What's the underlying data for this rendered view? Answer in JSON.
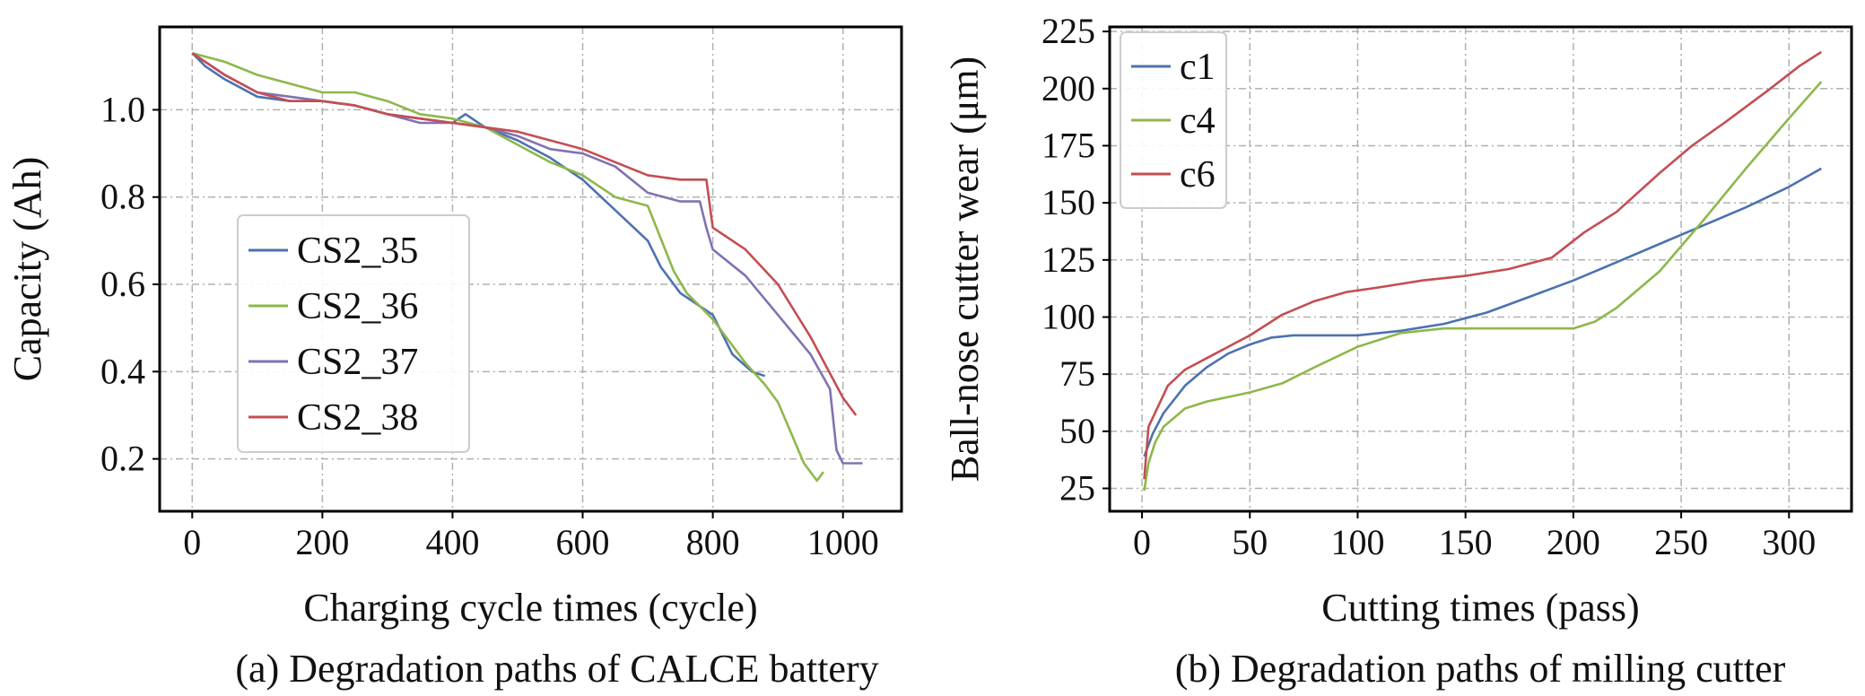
{
  "chart_data": [
    {
      "type": "line",
      "caption": "(a) Degradation paths of CALCE battery",
      "xlabel": "Charging cycle times (cycle)",
      "ylabel": "Capacity (Ah)",
      "xlim": [
        -50,
        1090
      ],
      "ylim": [
        0.08,
        1.19
      ],
      "xticks": [
        0,
        200,
        400,
        600,
        800,
        1000
      ],
      "yticks": [
        0.2,
        0.4,
        0.6,
        0.8,
        1.0
      ],
      "xtick_labels": [
        "0",
        "200",
        "400",
        "600",
        "800",
        "1000"
      ],
      "ytick_labels": [
        "0.2",
        "0.4",
        "0.6",
        "0.8",
        "1.0"
      ],
      "grid": true,
      "legend_position": "center-left",
      "series": [
        {
          "name": "CS2_35",
          "color": "#4C72B0",
          "x": [
            0,
            20,
            50,
            100,
            150,
            200,
            250,
            300,
            350,
            400,
            420,
            450,
            500,
            550,
            600,
            650,
            700,
            720,
            750,
            800,
            830,
            860,
            880
          ],
          "y": [
            1.13,
            1.1,
            1.07,
            1.03,
            1.02,
            1.02,
            1.01,
            0.99,
            0.98,
            0.97,
            0.99,
            0.96,
            0.93,
            0.89,
            0.84,
            0.77,
            0.7,
            0.64,
            0.58,
            0.53,
            0.44,
            0.4,
            0.39
          ]
        },
        {
          "name": "CS2_36",
          "color": "#8DB84A",
          "x": [
            0,
            50,
            100,
            150,
            200,
            250,
            300,
            350,
            400,
            450,
            500,
            550,
            600,
            650,
            700,
            740,
            760,
            800,
            850,
            880,
            900,
            920,
            940,
            960,
            970
          ],
          "y": [
            1.13,
            1.11,
            1.08,
            1.06,
            1.04,
            1.04,
            1.02,
            0.99,
            0.98,
            0.96,
            0.92,
            0.88,
            0.85,
            0.8,
            0.78,
            0.63,
            0.58,
            0.52,
            0.42,
            0.37,
            0.33,
            0.26,
            0.19,
            0.15,
            0.17
          ]
        },
        {
          "name": "CS2_37",
          "color": "#8172B2",
          "x": [
            0,
            50,
            100,
            150,
            200,
            250,
            300,
            350,
            400,
            450,
            500,
            550,
            600,
            650,
            700,
            750,
            780,
            790,
            800,
            850,
            900,
            950,
            980,
            990,
            1000,
            1030
          ],
          "y": [
            1.13,
            1.08,
            1.04,
            1.03,
            1.02,
            1.01,
            0.99,
            0.97,
            0.97,
            0.96,
            0.94,
            0.91,
            0.9,
            0.87,
            0.81,
            0.79,
            0.79,
            0.73,
            0.68,
            0.62,
            0.53,
            0.44,
            0.36,
            0.22,
            0.19,
            0.19
          ]
        },
        {
          "name": "CS2_38",
          "color": "#C44E52",
          "x": [
            0,
            50,
            100,
            150,
            200,
            250,
            300,
            350,
            400,
            450,
            500,
            550,
            600,
            650,
            700,
            750,
            790,
            800,
            850,
            900,
            950,
            1000,
            1020
          ],
          "y": [
            1.13,
            1.08,
            1.04,
            1.02,
            1.02,
            1.01,
            0.99,
            0.98,
            0.97,
            0.96,
            0.95,
            0.93,
            0.91,
            0.88,
            0.85,
            0.84,
            0.84,
            0.73,
            0.68,
            0.6,
            0.48,
            0.34,
            0.3
          ]
        }
      ]
    },
    {
      "type": "line",
      "caption": "(b) Degradation paths of milling cutter",
      "xlabel": "Cutting times (pass)",
      "ylabel": "Ball-nose cutter wear (μm)",
      "xlim": [
        -15,
        329
      ],
      "ylim": [
        15,
        227
      ],
      "xticks": [
        0,
        50,
        100,
        150,
        200,
        250,
        300
      ],
      "yticks": [
        25,
        50,
        75,
        100,
        125,
        150,
        175,
        200,
        225
      ],
      "xtick_labels": [
        "0",
        "50",
        "100",
        "150",
        "200",
        "250",
        "300"
      ],
      "ytick_labels": [
        "25",
        "50",
        "75",
        "100",
        "125",
        "150",
        "175",
        "200",
        "225"
      ],
      "grid": true,
      "legend_position": "top-left",
      "series": [
        {
          "name": "c1",
          "color": "#4C72B0",
          "x": [
            1,
            5,
            10,
            20,
            30,
            40,
            50,
            60,
            70,
            80,
            100,
            120,
            140,
            160,
            180,
            200,
            220,
            240,
            260,
            280,
            300,
            315
          ],
          "y": [
            39,
            49,
            58,
            70,
            78,
            84,
            88,
            91,
            92,
            92,
            92,
            94,
            97,
            102,
            109,
            116,
            124,
            132,
            140,
            148,
            157,
            165
          ]
        },
        {
          "name": "c4",
          "color": "#8DB84A",
          "x": [
            1,
            3,
            6,
            10,
            20,
            30,
            40,
            50,
            65,
            80,
            100,
            120,
            140,
            160,
            180,
            200,
            210,
            220,
            240,
            260,
            280,
            300,
            315
          ],
          "y": [
            24,
            36,
            45,
            52,
            60,
            63,
            65,
            67,
            71,
            78,
            87,
            93,
            95,
            95,
            95,
            95,
            98,
            104,
            120,
            142,
            165,
            187,
            203
          ]
        },
        {
          "name": "c6",
          "color": "#C44E52",
          "x": [
            1,
            3,
            7,
            12,
            20,
            30,
            40,
            50,
            65,
            80,
            95,
            110,
            130,
            150,
            170,
            190,
            205,
            220,
            240,
            255,
            270,
            290,
            305,
            315
          ],
          "y": [
            29,
            52,
            60,
            70,
            77,
            82,
            87,
            92,
            101,
            107,
            111,
            113,
            116,
            118,
            121,
            126,
            137,
            146,
            163,
            175,
            185,
            199,
            210,
            216
          ]
        }
      ]
    }
  ]
}
